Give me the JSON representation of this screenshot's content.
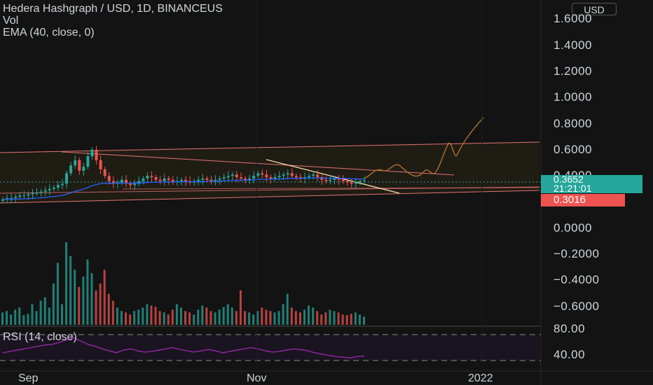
{
  "header": {
    "symbol": "Hedera Hashgraph / USD, 1D, BINANCEUS",
    "vol_label": "Vol",
    "ema_label": "EMA (40, close, 0)",
    "currency_button": "USD"
  },
  "price_axis": {
    "ticks": [
      "1.6000",
      "1.4000",
      "1.2000",
      "1.0000",
      "0.8000",
      "0.6000",
      "0.4000",
      "0.3652",
      "0.3016",
      "0.0000",
      "−0.2000",
      "−0.4000",
      "−0.6000"
    ]
  },
  "price_tags": {
    "last_price": "0.3652",
    "countdown": "21:21:01",
    "ema_value": "0.3016"
  },
  "rsi": {
    "label": "RSI (14, close)",
    "ticks": [
      "80.00",
      "40.00"
    ]
  },
  "time_axis": {
    "labels": [
      "Sep",
      "Nov",
      "2022"
    ]
  },
  "colors": {
    "background": "#131313",
    "up": "#26a69a",
    "down": "#ef5350",
    "ema": "#2962ff",
    "rsi": "#9c27b0",
    "trendline": "#ffe0b2",
    "channel": "#e57373",
    "projection": "#a86b2d"
  },
  "chart_data": {
    "type": "candlestick",
    "ylim": [
      -0.6,
      1.7
    ],
    "closes": [
      0.22,
      0.23,
      0.23,
      0.24,
      0.25,
      0.25,
      0.26,
      0.27,
      0.27,
      0.28,
      0.29,
      0.3,
      0.31,
      0.33,
      0.34,
      0.42,
      0.48,
      0.52,
      0.44,
      0.47,
      0.55,
      0.6,
      0.52,
      0.45,
      0.4,
      0.36,
      0.34,
      0.35,
      0.37,
      0.34,
      0.33,
      0.34,
      0.36,
      0.38,
      0.4,
      0.39,
      0.37,
      0.36,
      0.38,
      0.37,
      0.35,
      0.36,
      0.37,
      0.36,
      0.35,
      0.36,
      0.37,
      0.38,
      0.37,
      0.36,
      0.37,
      0.38,
      0.39,
      0.4,
      0.41,
      0.39,
      0.38,
      0.37,
      0.38,
      0.4,
      0.42,
      0.41,
      0.39,
      0.38,
      0.39,
      0.4,
      0.41,
      0.42,
      0.4,
      0.39,
      0.38,
      0.39,
      0.4,
      0.41,
      0.39,
      0.37,
      0.36,
      0.37,
      0.38,
      0.37,
      0.36,
      0.35,
      0.34,
      0.35,
      0.36,
      0.3652
    ],
    "volume": [
      18,
      20,
      15,
      22,
      25,
      14,
      16,
      30,
      20,
      35,
      40,
      25,
      60,
      90,
      30,
      120,
      100,
      80,
      55,
      70,
      95,
      75,
      50,
      60,
      80,
      45,
      35,
      25,
      20,
      18,
      15,
      20,
      22,
      25,
      30,
      28,
      26,
      20,
      18,
      15,
      22,
      30,
      25,
      20,
      18,
      15,
      22,
      28,
      25,
      20,
      18,
      22,
      26,
      30,
      25,
      20,
      50,
      20,
      18,
      15,
      20,
      25,
      22,
      20,
      18,
      20,
      30,
      45,
      25,
      20,
      18,
      22,
      28,
      25,
      20,
      15,
      18,
      22,
      20,
      18,
      15,
      14,
      16,
      18,
      15,
      12
    ],
    "rsi": [
      52,
      54,
      56,
      58,
      60,
      62,
      64,
      65,
      68,
      72,
      75,
      70,
      65,
      62,
      58,
      55,
      52,
      56,
      58,
      55,
      53,
      54,
      56,
      58,
      60,
      57,
      55,
      53,
      55,
      57,
      55,
      52,
      54,
      56,
      58,
      60,
      58,
      55,
      53,
      54,
      56,
      58,
      57,
      55,
      52,
      50,
      48,
      46,
      45,
      44,
      46,
      47
    ]
  }
}
